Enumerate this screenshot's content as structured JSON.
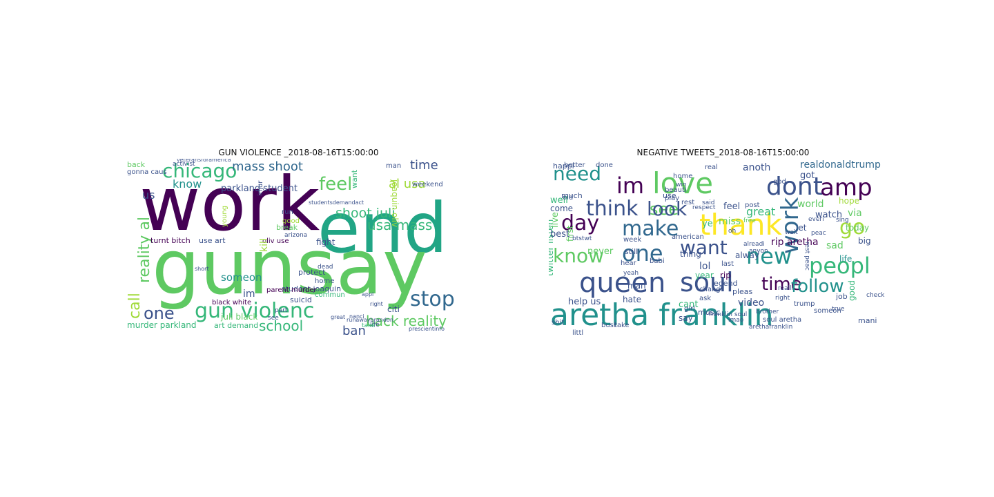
{
  "figure": {
    "left_title": "GUN VIOLENCE _2018-08-16T15:00:00",
    "right_title": "NEGATIVE TWEETS_2018-08-16T15:00:00"
  },
  "palette": {
    "dark_purple": "#440154",
    "indigo": "#3b528b",
    "teal": "#21918c",
    "green": "#5ec962",
    "lime": "#a0da39",
    "yellow": "#fde725",
    "slate": "#31688e",
    "sea": "#35b779"
  },
  "clouds": {
    "left": {
      "words": [
        {
          "text": "work",
          "color": "#440154"
        },
        {
          "text": "end",
          "color": "#21a585"
        },
        {
          "text": "gunsay",
          "color": "#5ec962"
        },
        {
          "text": "chicago",
          "color": "#35b779"
        },
        {
          "text": "mass shoot",
          "color": "#31688e"
        },
        {
          "text": "feel",
          "color": "#5ec962"
        },
        {
          "text": "al usa",
          "color": "#a0da39"
        },
        {
          "text": "time",
          "color": "#3b528b"
        },
        {
          "text": "shoot juli",
          "color": "#35b779"
        },
        {
          "text": "usa mass",
          "color": "#35b779"
        },
        {
          "text": "stop",
          "color": "#31688e"
        },
        {
          "text": "back reality",
          "color": "#5ec962"
        },
        {
          "text": "one",
          "color": "#3b528b"
        },
        {
          "text": "gun violenc",
          "color": "#35b779"
        },
        {
          "text": "school",
          "color": "#35b779"
        },
        {
          "text": "ban",
          "color": "#3b528b"
        },
        {
          "text": "reality al",
          "color": "#5ec962"
        },
        {
          "text": "call",
          "color": "#a0da39"
        },
        {
          "text": "know",
          "color": "#21918c"
        },
        {
          "text": "us",
          "color": "#3b528b"
        },
        {
          "text": "parkland student",
          "color": "#3b528b"
        },
        {
          "text": "someon",
          "color": "#21918c"
        },
        {
          "text": "im",
          "color": "#3b528b"
        },
        {
          "text": "turnt bitch",
          "color": "#440154"
        },
        {
          "text": "use art",
          "color": "#3b528b"
        },
        {
          "text": "oliv use",
          "color": "#440154"
        },
        {
          "text": "student joaquin",
          "color": "#3b528b"
        },
        {
          "text": "protect",
          "color": "#3b528b"
        },
        {
          "text": "parent murder",
          "color": "#440154"
        },
        {
          "text": "black white",
          "color": "#440154"
        },
        {
          "text": "murder parkland",
          "color": "#35b779"
        },
        {
          "text": "juli black",
          "color": "#5ec962"
        },
        {
          "text": "art demand",
          "color": "#35b779"
        },
        {
          "text": "suicid",
          "color": "#3b528b"
        },
        {
          "text": "fight",
          "color": "#3b528b"
        },
        {
          "text": "citi",
          "color": "#3b528b"
        },
        {
          "text": "home",
          "color": "#3b528b"
        },
        {
          "text": "break",
          "color": "#5ec962"
        },
        {
          "text": "good",
          "color": "#a0da39"
        },
        {
          "text": "run",
          "color": "#3b528b"
        },
        {
          "text": "young",
          "color": "#a0da39"
        },
        {
          "text": "injur",
          "color": "#3b528b"
        },
        {
          "text": "back",
          "color": "#5ec962"
        },
        {
          "text": "gonna caus",
          "color": "#3b528b"
        },
        {
          "text": "man",
          "color": "#3b528b"
        },
        {
          "text": "weekend",
          "color": "#3b528b"
        },
        {
          "text": "arizona",
          "color": "#3b528b"
        },
        {
          "text": "commun",
          "color": "#35b779"
        },
        {
          "text": "life",
          "color": "#3b528b"
        },
        {
          "text": "take",
          "color": "#35b779"
        },
        {
          "text": "dead",
          "color": "#3b528b"
        },
        {
          "text": "kill",
          "color": "#a0da39"
        },
        {
          "text": "see",
          "color": "#3b528b"
        },
        {
          "text": "part",
          "color": "#3b528b"
        },
        {
          "text": "want",
          "color": "#35b779"
        },
        {
          "text": "studentsdemandact",
          "color": "#3b528b"
        },
        {
          "text": "prescientinfo",
          "color": "#3b528b"
        },
        {
          "text": "runawaybrandon",
          "color": "#3b528b"
        },
        {
          "text": "great",
          "color": "#3b528b"
        },
        {
          "text": "activist",
          "color": "#3b528b"
        },
        {
          "text": "veteransforamerica",
          "color": "#3b528b"
        },
        {
          "text": "short",
          "color": "#3b528b"
        },
        {
          "text": "nanci",
          "color": "#3b528b"
        },
        {
          "text": "appl",
          "color": "#3b528b"
        },
        {
          "text": "right",
          "color": "#3b528b"
        },
        {
          "text": "joaquin oliv",
          "color": "#a0da39"
        }
      ]
    },
    "right": {
      "words": [
        {
          "text": "aretha franklin",
          "color": "#21918c"
        },
        {
          "text": "queen",
          "color": "#3b528b"
        },
        {
          "text": "soul",
          "color": "#3b528b"
        },
        {
          "text": "thank",
          "color": "#fde725"
        },
        {
          "text": "love",
          "color": "#5ec962"
        },
        {
          "text": "dont",
          "color": "#3b528b"
        },
        {
          "text": "amp",
          "color": "#440154"
        },
        {
          "text": "im",
          "color": "#440154"
        },
        {
          "text": "need",
          "color": "#21918c"
        },
        {
          "text": "see",
          "color": "#5ec962"
        },
        {
          "text": "think",
          "color": "#3b528b"
        },
        {
          "text": "look",
          "color": "#3b528b"
        },
        {
          "text": "make",
          "color": "#31688e"
        },
        {
          "text": "day",
          "color": "#440154"
        },
        {
          "text": "one",
          "color": "#31688e"
        },
        {
          "text": "want",
          "color": "#3b528b"
        },
        {
          "text": "know",
          "color": "#5ec962"
        },
        {
          "text": "new",
          "color": "#21918c"
        },
        {
          "text": "peopl",
          "color": "#35b779"
        },
        {
          "text": "go",
          "color": "#a0da39"
        },
        {
          "text": "work",
          "color": "#31688e"
        },
        {
          "text": "time",
          "color": "#440154"
        },
        {
          "text": "follow",
          "color": "#21918c"
        },
        {
          "text": "realdonaldtrump",
          "color": "#31688e"
        },
        {
          "text": "anoth",
          "color": "#3b528b"
        },
        {
          "text": "got",
          "color": "#3b528b"
        },
        {
          "text": "world",
          "color": "#5ec962"
        },
        {
          "text": "watch",
          "color": "#3b528b"
        },
        {
          "text": "hope",
          "color": "#a0da39"
        },
        {
          "text": "via",
          "color": "#5ec962"
        },
        {
          "text": "today",
          "color": "#5ec962"
        },
        {
          "text": "sad",
          "color": "#5ec962"
        },
        {
          "text": "life",
          "color": "#21918c"
        },
        {
          "text": "big",
          "color": "#3b528b"
        },
        {
          "text": "great",
          "color": "#35b779"
        },
        {
          "text": "feel",
          "color": "#3b528b"
        },
        {
          "text": "let",
          "color": "#3b528b"
        },
        {
          "text": "miss",
          "color": "#5ec962"
        },
        {
          "text": "rip aretha",
          "color": "#440154"
        },
        {
          "text": "video",
          "color": "#3b528b"
        },
        {
          "text": "year",
          "color": "#35b779"
        },
        {
          "text": "rip",
          "color": "#440154"
        },
        {
          "text": "lol",
          "color": "#3b528b"
        },
        {
          "text": "help us",
          "color": "#3b528b"
        },
        {
          "text": "cant",
          "color": "#35b779"
        },
        {
          "text": "music",
          "color": "#3b528b"
        },
        {
          "text": "say",
          "color": "#3b528b"
        },
        {
          "text": "twitter listen",
          "color": "#35b779"
        },
        {
          "text": "first",
          "color": "#5ec962"
        },
        {
          "text": "live",
          "color": "#5ec962"
        },
        {
          "text": "best",
          "color": "#3b528b"
        },
        {
          "text": "never",
          "color": "#5ec962"
        },
        {
          "text": "still",
          "color": "#3b528b"
        },
        {
          "text": "babi",
          "color": "#3b528b"
        },
        {
          "text": "come",
          "color": "#3b528b"
        },
        {
          "text": "well",
          "color": "#35b779"
        },
        {
          "text": "much",
          "color": "#3b528b"
        },
        {
          "text": "use",
          "color": "#3b528b"
        },
        {
          "text": "rest",
          "color": "#3b528b"
        },
        {
          "text": "respect",
          "color": "#3b528b"
        },
        {
          "text": "post",
          "color": "#3b528b"
        },
        {
          "text": "wait",
          "color": "#3b528b"
        },
        {
          "text": "thing",
          "color": "#3b528b"
        },
        {
          "text": "legend",
          "color": "#3b528b"
        },
        {
          "text": "man",
          "color": "#3b528b"
        },
        {
          "text": "hate",
          "color": "#3b528b"
        },
        {
          "text": "chang",
          "color": "#3b528b"
        },
        {
          "text": "pleas",
          "color": "#3b528b"
        },
        {
          "text": "good",
          "color": "#35b779"
        },
        {
          "text": "job",
          "color": "#3b528b"
        },
        {
          "text": "trump",
          "color": "#3b528b"
        },
        {
          "text": "someon",
          "color": "#3b528b"
        },
        {
          "text": "arethafranklin",
          "color": "#3b528b"
        },
        {
          "text": "soul aretha",
          "color": "#3b528b"
        },
        {
          "text": "busi",
          "color": "#3b528b"
        },
        {
          "text": "take",
          "color": "#3b528b"
        },
        {
          "text": "littl",
          "color": "#3b528b"
        },
        {
          "text": "shit",
          "color": "#3b528b"
        },
        {
          "text": "mani",
          "color": "#3b528b"
        },
        {
          "text": "happi",
          "color": "#3b528b"
        },
        {
          "text": "better",
          "color": "#3b528b"
        },
        {
          "text": "done",
          "color": "#3b528b"
        },
        {
          "text": "real",
          "color": "#3b528b"
        },
        {
          "text": "home",
          "color": "#3b528b"
        },
        {
          "text": "beauti",
          "color": "#3b528b"
        },
        {
          "text": "ye",
          "color": "#35b779"
        },
        {
          "text": "old",
          "color": "#3b528b"
        },
        {
          "text": "american",
          "color": "#3b528b"
        },
        {
          "text": "ask",
          "color": "#3b528b"
        },
        {
          "text": "last",
          "color": "#3b528b"
        },
        {
          "text": "week",
          "color": "#3b528b"
        },
        {
          "text": "play",
          "color": "#3b528b"
        },
        {
          "text": "god",
          "color": "#3b528b"
        },
        {
          "text": "win",
          "color": "#3b528b"
        },
        {
          "text": "said",
          "color": "#3b528b"
        },
        {
          "text": "girl",
          "color": "#3b528b"
        },
        {
          "text": "brother",
          "color": "#3b528b"
        },
        {
          "text": "realli",
          "color": "#3b528b"
        },
        {
          "text": "right",
          "color": "#3b528b"
        },
        {
          "text": "anyon",
          "color": "#3b528b"
        },
        {
          "text": "free",
          "color": "#5ec962"
        },
        {
          "text": "alway",
          "color": "#3b528b"
        },
        {
          "text": "alreadi",
          "color": "#3b528b"
        },
        {
          "text": "btstwt",
          "color": "#3b528b"
        },
        {
          "text": "hear",
          "color": "#3b528b"
        },
        {
          "text": "yeah",
          "color": "#3b528b"
        },
        {
          "text": "true",
          "color": "#3b528b"
        },
        {
          "text": "sing",
          "color": "#3b528b"
        },
        {
          "text": "check",
          "color": "#3b528b"
        },
        {
          "text": "oh",
          "color": "#3b528b"
        },
        {
          "text": "franklin soul",
          "color": "#3b528b"
        },
        {
          "text": "lmao",
          "color": "#3b528b"
        },
        {
          "text": "everi",
          "color": "#3b528b"
        },
        {
          "text": "peac",
          "color": "#3b528b"
        },
        {
          "text": "rest peac",
          "color": "#3b528b"
        }
      ]
    }
  }
}
